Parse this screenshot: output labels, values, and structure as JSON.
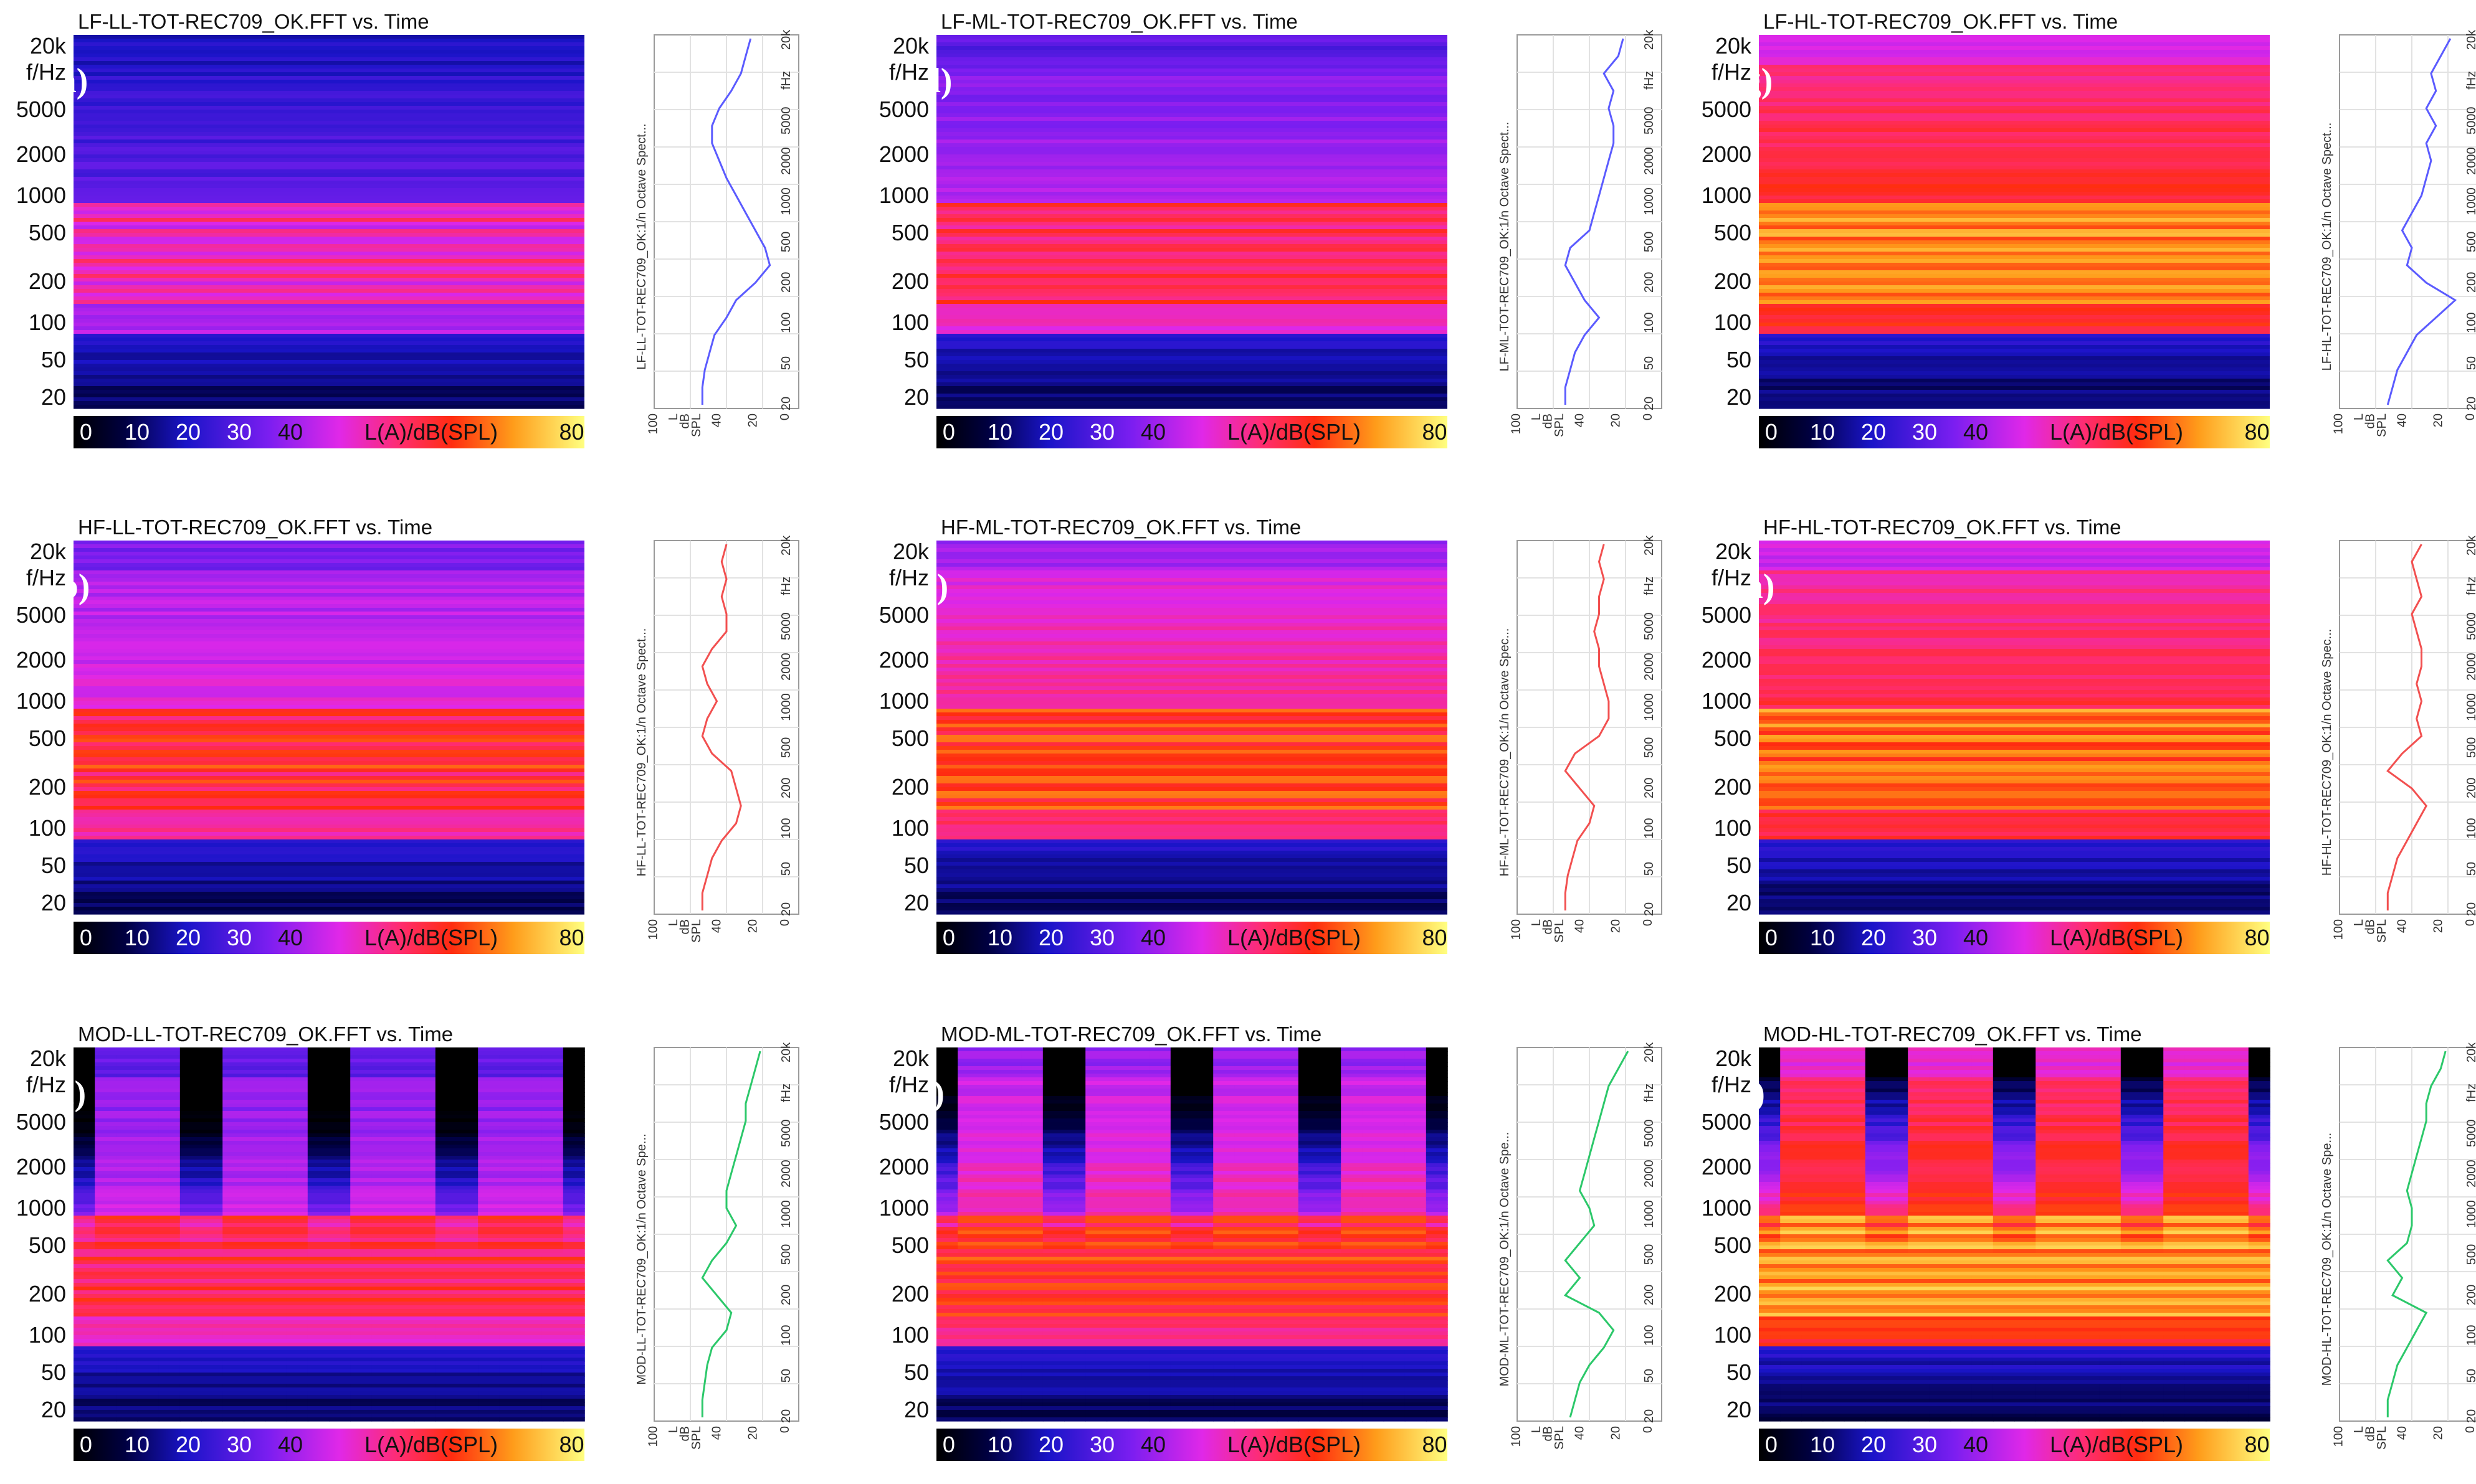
{
  "figure": {
    "colorbar": {
      "ticks": [
        "0",
        "10",
        "20",
        "30",
        "40",
        "80"
      ],
      "unit_label": "L(A)/dB(SPL)"
    },
    "freq_ticks": [
      "20k",
      "f/Hz",
      "5000",
      "2000",
      "1000",
      "500",
      "200",
      "100",
      "50",
      "20"
    ],
    "side_freq_ticks": [
      "20",
      "50",
      "100",
      "200",
      "500",
      "1000",
      "2000",
      "5000",
      "fHz",
      "20k"
    ],
    "side_level_ticks": [
      "100",
      "L",
      "dB",
      "SPL",
      "40",
      "20",
      "0"
    ],
    "colors": {
      "LF": "#5b5bff",
      "HF": "#f25050",
      "MOD": "#2cc86a"
    }
  },
  "chart_data": [
    {
      "panel": "a",
      "type": "heatmap",
      "title": "LF-LL-TOT-REC709_OK.FFT vs. Time",
      "side_title": "LF-LL-TOT-REC709_OK:1/n Octave Spect...",
      "level": 0.0,
      "modulated": false,
      "series_color": "LF",
      "spectrum_db": [
        40,
        40,
        39,
        37,
        35,
        30,
        26,
        18,
        12,
        14,
        18,
        22,
        26,
        30,
        33,
        36,
        36,
        33,
        28,
        24,
        22,
        20
      ]
    },
    {
      "panel": "b",
      "type": "heatmap",
      "title": "HF-LL-TOT-REC709_OK.FFT vs. Time",
      "side_title": "HF-LL-TOT-REC709_OK:1/n Octave Spect...",
      "level": 0.45,
      "modulated": false,
      "series_color": "HF",
      "spectrum_db": [
        40,
        40,
        38,
        36,
        32,
        26,
        24,
        26,
        28,
        36,
        40,
        38,
        34,
        38,
        40,
        36,
        30,
        30,
        32,
        30,
        32,
        30
      ]
    },
    {
      "panel": "c",
      "type": "heatmap",
      "title": "MOD-LL-TOT-REC709_OK.FFT vs. Time",
      "side_title": "MOD-LL-TOT-REC709_OK:1/n Octave Spe...",
      "level": 0.35,
      "modulated": true,
      "series_color": "MOD",
      "spectrum_db": [
        40,
        40,
        39,
        38,
        36,
        30,
        28,
        34,
        40,
        36,
        30,
        26,
        30,
        30,
        28,
        26,
        24,
        22,
        22,
        20,
        18,
        16
      ]
    },
    {
      "panel": "d",
      "type": "heatmap",
      "title": "LF-ML-TOT-REC709_OK.FFT vs. Time",
      "side_title": "LF-ML-TOT-REC709_OK:1/n Octave Spect...",
      "level": 0.3,
      "modulated": false,
      "series_color": "LF",
      "spectrum_db": [
        40,
        40,
        38,
        36,
        32,
        26,
        32,
        36,
        40,
        38,
        30,
        28,
        26,
        24,
        22,
        20,
        20,
        22,
        20,
        24,
        18,
        16
      ]
    },
    {
      "panel": "e",
      "type": "heatmap",
      "title": "HF-ML-TOT-REC709_OK.FFT vs. Time",
      "side_title": "HF-ML-TOT-REC709_OK:1/n Octave Spec...",
      "level": 0.62,
      "modulated": false,
      "series_color": "HF",
      "spectrum_db": [
        40,
        40,
        39,
        37,
        35,
        30,
        28,
        34,
        40,
        36,
        26,
        22,
        22,
        24,
        26,
        26,
        28,
        26,
        26,
        24,
        26,
        24
      ]
    },
    {
      "panel": "f",
      "type": "heatmap",
      "title": "MOD-ML-TOT-REC709_OK.FFT vs. Time",
      "side_title": "MOD-ML-TOT-REC709_OK:1/n Octave Spe...",
      "level": 0.55,
      "modulated": true,
      "series_color": "MOD",
      "spectrum_db": [
        38,
        36,
        34,
        30,
        24,
        20,
        26,
        40,
        34,
        40,
        34,
        28,
        30,
        34,
        32,
        30,
        28,
        26,
        24,
        22,
        18,
        14
      ]
    },
    {
      "panel": "g",
      "type": "heatmap",
      "title": "LF-HL-TOT-REC709_OK.FFT vs. Time",
      "side_title": "LF-HL-TOT-REC709_OK:1/n Octave Spect...",
      "level": 0.85,
      "modulated": false,
      "series_color": "LF",
      "spectrum_db": [
        40,
        38,
        36,
        32,
        28,
        20,
        12,
        24,
        32,
        30,
        34,
        30,
        26,
        24,
        22,
        24,
        20,
        24,
        20,
        22,
        18,
        14
      ]
    },
    {
      "panel": "h",
      "type": "heatmap",
      "title": "HF-HL-TOT-REC709_OK.FFT vs. Time",
      "side_title": "HF-HL-TOT-REC709_OK:1/n Octave Spec...",
      "level": 0.78,
      "modulated": false,
      "series_color": "HF",
      "spectrum_db": [
        40,
        40,
        38,
        36,
        32,
        28,
        24,
        30,
        40,
        34,
        26,
        28,
        26,
        28,
        26,
        26,
        28,
        30,
        26,
        28,
        30,
        26
      ]
    },
    {
      "panel": "i",
      "type": "heatmap",
      "title": "MOD-HL-TOT-REC709_OK.FFT vs. Time",
      "side_title": "MOD-HL-TOT-REC709_OK:1/n Octave Spe...",
      "level": 0.9,
      "modulated": true,
      "series_color": "MOD",
      "spectrum_db": [
        40,
        40,
        38,
        36,
        32,
        28,
        24,
        38,
        34,
        40,
        32,
        30,
        30,
        32,
        30,
        28,
        26,
        24,
        24,
        22,
        18,
        16
      ]
    }
  ]
}
